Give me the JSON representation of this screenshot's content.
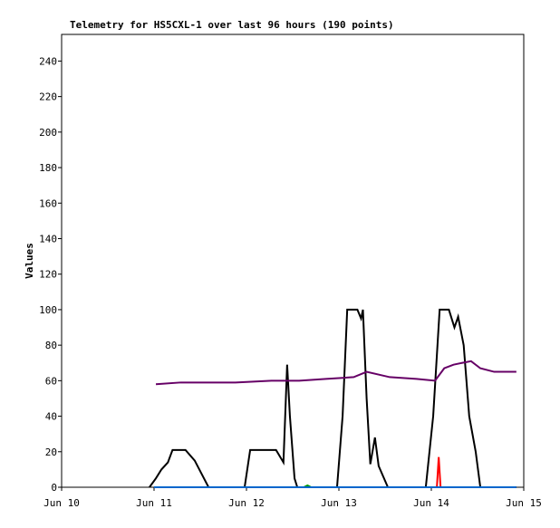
{
  "chart_data": {
    "type": "line",
    "title": "Telemetry for HS5CXL-1 over last 96 hours (190 points)",
    "y_label": "Values",
    "xlim": [
      10,
      15
    ],
    "xticks": [
      {
        "value": 10,
        "label": "Jun 10"
      },
      {
        "value": 11,
        "label": "Jun 11"
      },
      {
        "value": 12,
        "label": "Jun 12"
      },
      {
        "value": 13,
        "label": "Jun 13"
      },
      {
        "value": 14,
        "label": "Jun 14"
      },
      {
        "value": 15,
        "label": "Jun 15"
      }
    ],
    "ylim": [
      0,
      255
    ],
    "yticks": [
      0,
      20,
      40,
      60,
      80,
      100,
      120,
      140,
      160,
      180,
      200,
      220,
      240
    ],
    "series": [
      {
        "color": "#000000",
        "x": [
          10.95,
          11.02,
          11.08,
          11.15,
          11.2,
          11.34,
          11.44,
          11.54,
          11.59,
          11.98,
          12.04,
          12.32,
          12.4,
          12.44,
          12.47,
          12.52,
          12.55,
          12.98,
          13.04,
          13.09,
          13.2,
          13.24,
          13.26,
          13.3,
          13.34,
          13.39,
          13.43,
          13.53,
          13.94,
          14.02,
          14.09,
          14.19,
          14.25,
          14.29,
          14.35,
          14.41,
          14.48,
          14.53,
          14.92
        ],
        "values": [
          0,
          5,
          10,
          14,
          21,
          21,
          15,
          5,
          0,
          0,
          21,
          21,
          14,
          69,
          40,
          5,
          0,
          0,
          40,
          100,
          100,
          95,
          100,
          50,
          13,
          28,
          12,
          0,
          0,
          40,
          100,
          100,
          90,
          96,
          80,
          40,
          20,
          0,
          0
        ]
      },
      {
        "color": "#660066",
        "x": [
          11.02,
          11.29,
          11.59,
          11.88,
          12.27,
          12.57,
          12.86,
          13.16,
          13.3,
          13.55,
          13.84,
          14.04,
          14.14,
          14.24,
          14.33,
          14.43,
          14.53,
          14.68,
          14.92
        ],
        "values": [
          58,
          59,
          59,
          59,
          60,
          60,
          61,
          62,
          65,
          62,
          61,
          60,
          67,
          69,
          70,
          71,
          67,
          65,
          65
        ]
      },
      {
        "color": "#ff0000",
        "x": [
          14,
          14.06,
          14.08,
          14.1,
          14.16
        ],
        "values": [
          0,
          0,
          17,
          0,
          0
        ]
      },
      {
        "color": "#009900",
        "x": [
          12.62,
          12.66,
          12.7
        ],
        "values": [
          0,
          1,
          0
        ]
      },
      {
        "color": "#0066cc",
        "x": [
          11,
          14.92
        ],
        "values": [
          0,
          0
        ]
      }
    ]
  }
}
